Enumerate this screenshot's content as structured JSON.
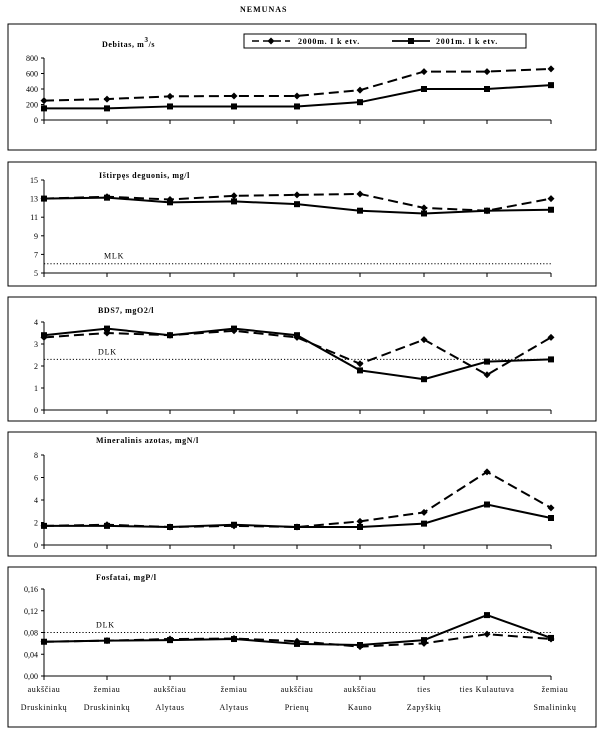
{
  "page_title": "NEMUNAS",
  "legend": {
    "series_2000": "2000m. I k etv.",
    "series_2001": "2001m. I k etv."
  },
  "x_axis": {
    "tick_labels_line1": [
      "aukščiau",
      "žemiau",
      "aukščiau",
      "žemiau",
      "aukščiau",
      "aukščiau",
      "ties",
      "ties Kulautuva",
      "žemiau"
    ],
    "tick_labels_line2": [
      "Druskininkų",
      "Druskininkų",
      "Alytaus",
      "Alytaus",
      "Prienų",
      "Kauno",
      "Zapyškių",
      "",
      "Smalininkų"
    ]
  },
  "chart_data": [
    {
      "type": "line",
      "title": "Debitas, m",
      "title_superscript": "3",
      "title_suffix": "/s",
      "ylim": [
        0,
        800
      ],
      "y_ticks": [
        "0",
        "200",
        "400",
        "600",
        "800"
      ],
      "series": [
        {
          "name": "2000m. I k etv.",
          "values": [
            250,
            270,
            305,
            310,
            310,
            385,
            625,
            625,
            660
          ]
        },
        {
          "name": "2001m. I k etv.",
          "values": [
            150,
            150,
            175,
            175,
            175,
            230,
            400,
            400,
            450
          ]
        }
      ]
    },
    {
      "type": "line",
      "title": "Ištirpęs deguonis, mg/l",
      "ylim": [
        5,
        15
      ],
      "y_ticks": [
        "5",
        "7",
        "9",
        "11",
        "13",
        "15"
      ],
      "reference_line": {
        "label": "MLK",
        "value": 6
      },
      "series": [
        {
          "name": "2000m. I k etv.",
          "values": [
            13.0,
            13.2,
            12.9,
            13.3,
            13.4,
            13.5,
            12.0,
            11.7,
            13.0
          ]
        },
        {
          "name": "2001m. I k etv.",
          "values": [
            13.0,
            13.1,
            12.6,
            12.7,
            12.4,
            11.7,
            11.4,
            11.7,
            11.8
          ]
        }
      ]
    },
    {
      "type": "line",
      "title": "BDS7, mgO2/l",
      "ylim": [
        0,
        4
      ],
      "y_ticks": [
        "0",
        "1",
        "2",
        "3",
        "4"
      ],
      "reference_line": {
        "label": "DLK",
        "value": 2.3
      },
      "series": [
        {
          "name": "2000m. I k etv.",
          "values": [
            3.3,
            3.5,
            3.4,
            3.6,
            3.3,
            2.1,
            3.2,
            1.6,
            3.3
          ]
        },
        {
          "name": "2001m. I k etv.",
          "values": [
            3.4,
            3.7,
            3.4,
            3.7,
            3.4,
            1.8,
            1.4,
            2.2,
            2.3
          ]
        }
      ]
    },
    {
      "type": "line",
      "title": "Mineralinis azotas, mgN/l",
      "ylim": [
        0,
        8
      ],
      "y_ticks": [
        "0",
        "2",
        "4",
        "6",
        "8"
      ],
      "series": [
        {
          "name": "2000m. I k etv.",
          "values": [
            1.7,
            1.8,
            1.6,
            1.7,
            1.6,
            2.1,
            2.9,
            6.5,
            3.3
          ]
        },
        {
          "name": "2001m. I k etv.",
          "values": [
            1.7,
            1.7,
            1.6,
            1.8,
            1.6,
            1.6,
            1.9,
            3.6,
            2.4
          ]
        }
      ]
    },
    {
      "type": "line",
      "title": "Fosfatai, mgP/l",
      "ylim": [
        0,
        0.16
      ],
      "y_ticks": [
        "0,00",
        "0,04",
        "0,08",
        "0,12",
        "0,16"
      ],
      "reference_line": {
        "label": "DLK",
        "value": 0.08
      },
      "series": [
        {
          "name": "2000m. I k etv.",
          "values": [
            0.063,
            0.065,
            0.068,
            0.069,
            0.064,
            0.054,
            0.06,
            0.077,
            0.068
          ]
        },
        {
          "name": "2001m. I k etv.",
          "values": [
            0.063,
            0.065,
            0.066,
            0.068,
            0.059,
            0.057,
            0.066,
            0.112,
            0.07
          ]
        }
      ]
    }
  ]
}
